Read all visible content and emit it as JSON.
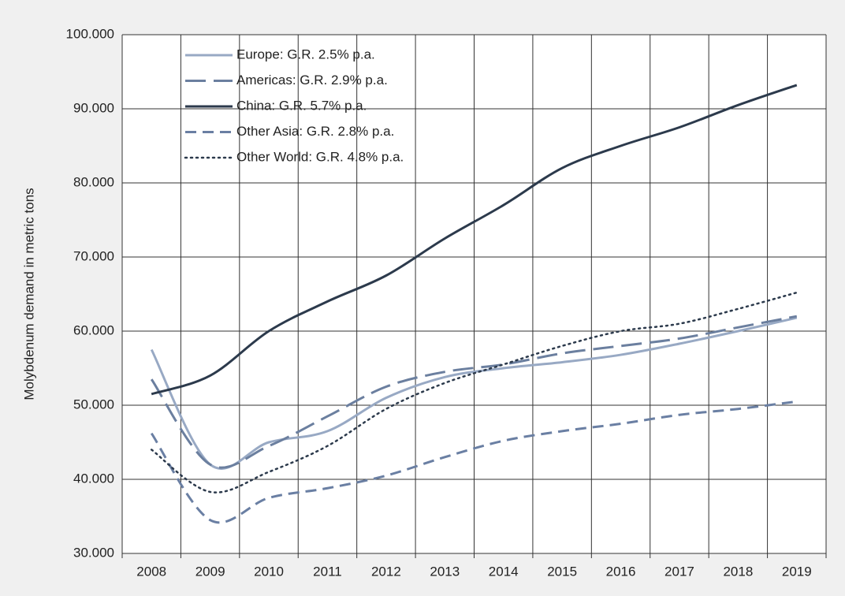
{
  "chart_data": {
    "type": "line",
    "y_label": "Molybdenum demand in metric tons",
    "categories": [
      "2008",
      "2009",
      "2010",
      "2011",
      "2012",
      "2013",
      "2014",
      "2015",
      "2016",
      "2017",
      "2018",
      "2019"
    ],
    "ylim": [
      30000,
      100000
    ],
    "yticks": [
      {
        "value": 30000,
        "label": "30.000"
      },
      {
        "value": 40000,
        "label": "40.000"
      },
      {
        "value": 50000,
        "label": "50.000"
      },
      {
        "value": 60000,
        "label": "60.000"
      },
      {
        "value": 70000,
        "label": "70.000"
      },
      {
        "value": 80000,
        "label": "80.000"
      },
      {
        "value": 90000,
        "label": "90.000"
      },
      {
        "value": 100000,
        "label": "100.000"
      }
    ],
    "grid": true,
    "legend": "upper left",
    "series": [
      {
        "name": "Europe: G.R. 2.5% p.a.",
        "color": "#98a9c4",
        "dash": "solid",
        "values": [
          57500,
          42000,
          45000,
          46500,
          51000,
          53800,
          55000,
          55800,
          56800,
          58300,
          60000,
          61800
        ]
      },
      {
        "name": "Americas: G.R. 2.9% p.a.",
        "color": "#6b7f9f",
        "dash": "longdash",
        "values": [
          53500,
          42000,
          44500,
          48500,
          52500,
          54500,
          55500,
          57000,
          58000,
          59000,
          60500,
          62000
        ]
      },
      {
        "name": "China: G.R. 5.7% p.a.",
        "color": "#2c3a4c",
        "dash": "solid",
        "values": [
          51500,
          54000,
          60000,
          64000,
          67500,
          72500,
          77000,
          82000,
          85000,
          87500,
          90500,
          93200
        ]
      },
      {
        "name": "Other Asia: G.R. 2.8% p.a.",
        "color": "#6a7fa3",
        "dash": "dash",
        "values": [
          46200,
          34500,
          37500,
          38800,
          40500,
          43000,
          45200,
          46500,
          47500,
          48700,
          49500,
          50500
        ]
      },
      {
        "name": "Other World: G.R. 4.8% p.a.",
        "color": "#2c3a4c",
        "dash": "dot",
        "values": [
          44000,
          38300,
          41000,
          44500,
          49500,
          53000,
          55500,
          58000,
          60000,
          61000,
          63000,
          65200
        ]
      }
    ]
  }
}
